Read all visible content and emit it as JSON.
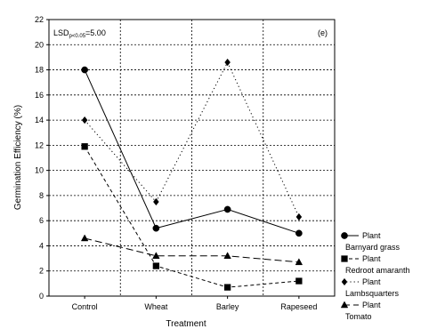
{
  "chart_data": {
    "type": "line",
    "panel_label": "(e)",
    "lsd": {
      "prefix": "LSD",
      "subscript": "p<0.05",
      "value": "=5.00"
    },
    "xlabel": "Treatment",
    "ylabel": "Germination Efficiency (%)",
    "categories": [
      "Control",
      "Wheat",
      "Barley",
      "Rapeseed"
    ],
    "ylim": [
      0,
      22
    ],
    "yticks": [
      "0",
      "2",
      "4",
      "6",
      "8",
      "10",
      "12",
      "14",
      "16",
      "18",
      "20",
      "22"
    ],
    "grid": true,
    "legend_position": "right",
    "series": [
      {
        "label_line1": "Plant",
        "label_line2": "Barnyard grass",
        "marker": "circle",
        "dash": "solid",
        "values": [
          18.0,
          5.4,
          6.9,
          5.0
        ]
      },
      {
        "label_line1": "Plant",
        "label_line2": "Redroot amaranth",
        "marker": "square",
        "dash": "dashed",
        "values": [
          11.9,
          2.4,
          0.7,
          1.2
        ]
      },
      {
        "label_line1": "Plant",
        "label_line2": "Lambsquarters",
        "marker": "diamond",
        "dash": "dotted",
        "values": [
          14.0,
          7.5,
          18.6,
          6.3
        ]
      },
      {
        "label_line1": "Plant",
        "label_line2": "Tomato",
        "marker": "triangle",
        "dash": "longdash",
        "values": [
          4.6,
          3.2,
          3.2,
          2.7
        ]
      }
    ]
  }
}
